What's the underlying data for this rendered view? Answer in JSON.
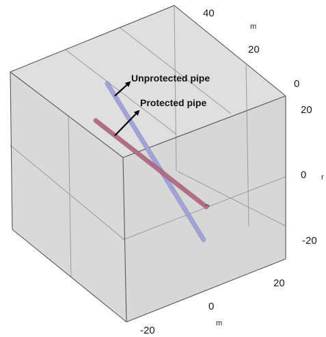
{
  "annotations": {
    "unprotected": "Unprotected pipe",
    "protected": "Protected pipe"
  },
  "axes": {
    "back_ticks": [
      "40",
      "20",
      "0"
    ],
    "back_unit": "m",
    "right_ticks": [
      "20",
      "0",
      "-20"
    ],
    "right_unit": "r",
    "bottom_ticks": [
      "20",
      "0",
      "-20"
    ],
    "bottom_unit": "m"
  },
  "colors": {
    "box_face": "#c4c4c4",
    "box_edge": "#555555",
    "grid": "#9a9a9a",
    "unprotected_pipe": "#9fa3d9",
    "protected_pipe": "#b56b86",
    "arrow": "#000000"
  }
}
